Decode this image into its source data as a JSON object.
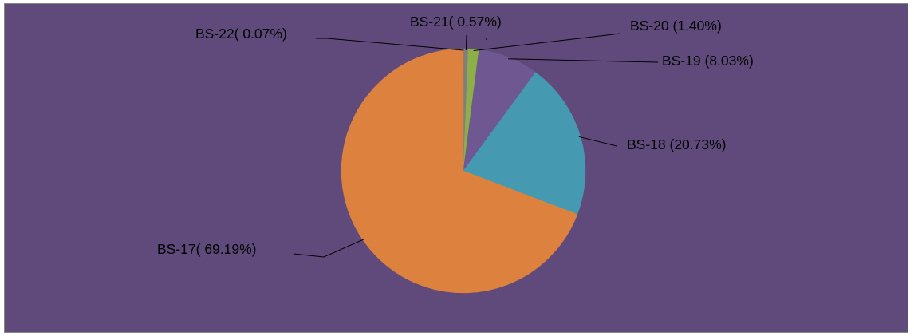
{
  "chart_data": {
    "type": "pie",
    "background": "#604A7B",
    "slices": [
      {
        "label": "BS-17( 69.19%)",
        "value": 69.19,
        "color": "#DD823E"
      },
      {
        "label": "BS-18 (20.73%)",
        "value": 20.73,
        "color": "#4599B0"
      },
      {
        "label": "BS-19 (8.03%)",
        "value": 8.03,
        "color": "#6F5892"
      },
      {
        "label": "BS-20 (1.40%)",
        "value": 1.4,
        "color": "#8EAE47"
      },
      {
        "label": "BS-21( 0.57%)",
        "value": 0.57,
        "color": "#7F7F7F"
      },
      {
        "label": "BS-22( 0.07%)",
        "value": 0.07,
        "color": "#BE4B48"
      }
    ],
    "order": [
      "BS-22( 0.07%)",
      "BS-21( 0.57%)",
      "BS-20 (1.40%)",
      "BS-19 (8.03%)",
      "BS-18 (20.73%)",
      "BS-17( 69.19%)"
    ],
    "grid": false,
    "legend": "none"
  }
}
